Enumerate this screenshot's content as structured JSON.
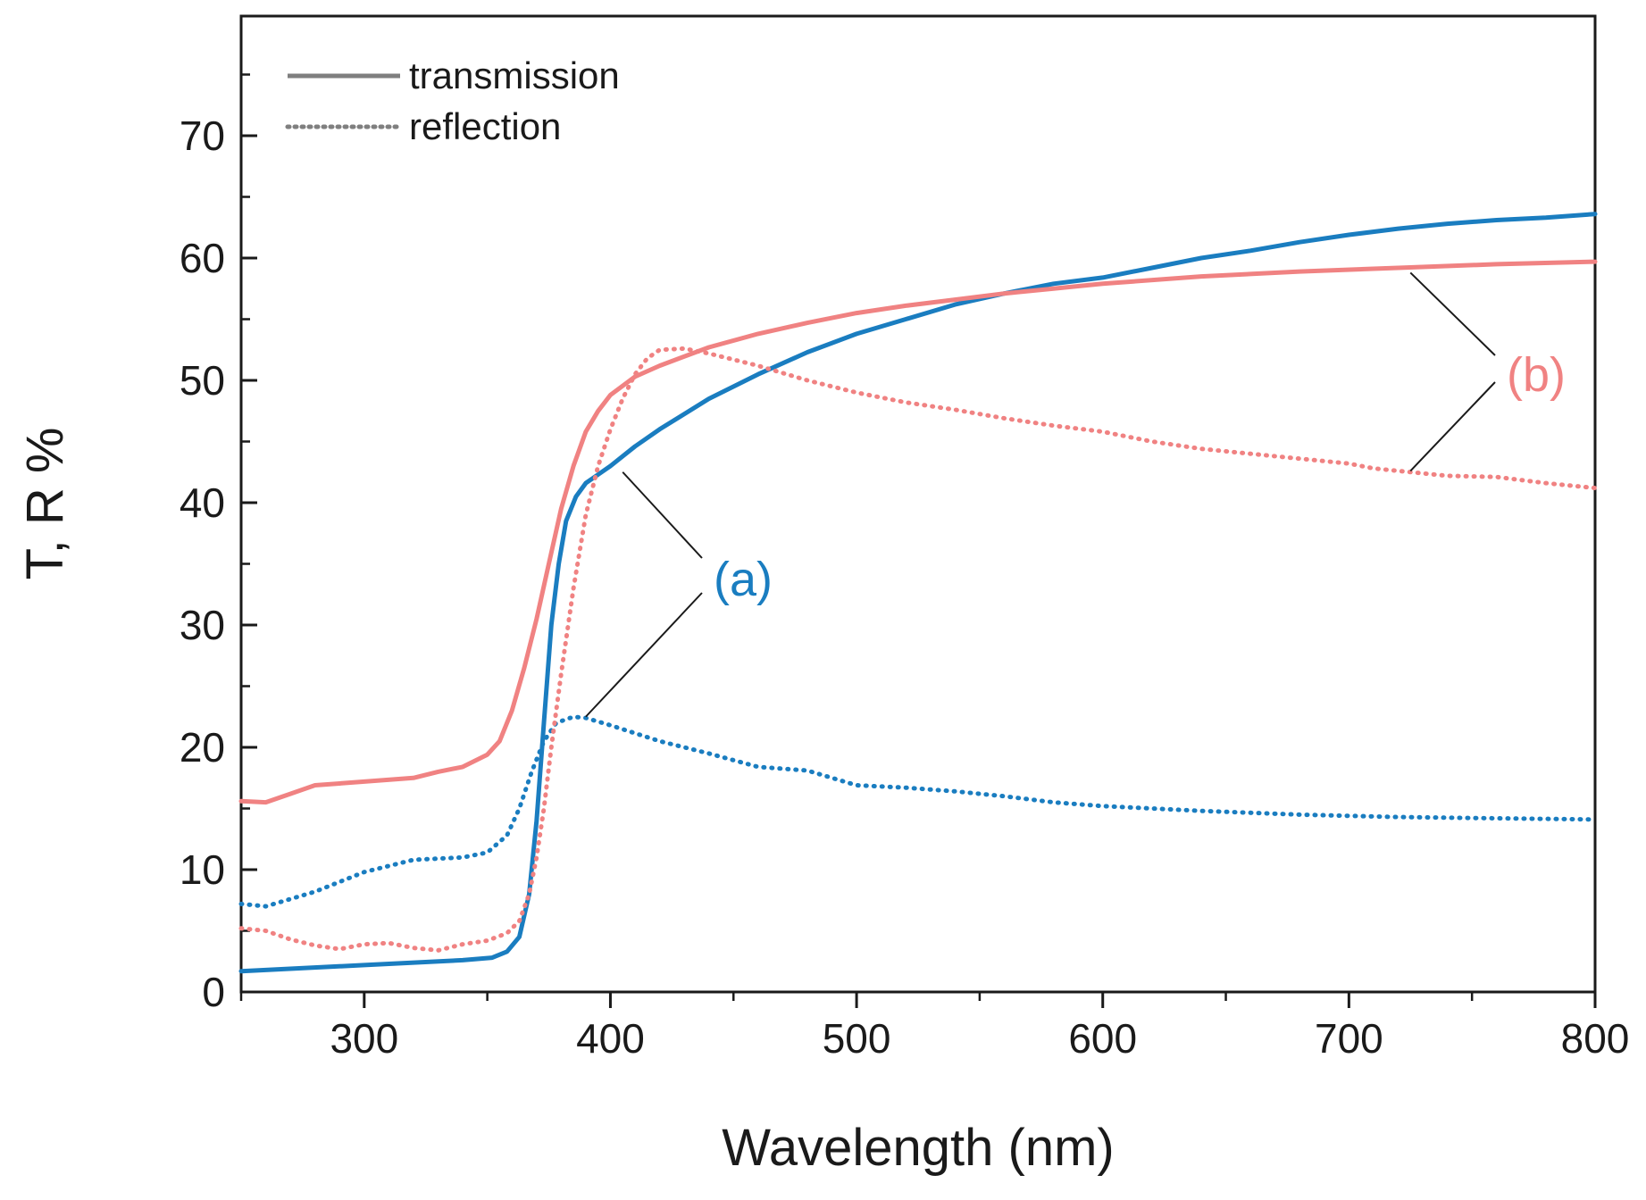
{
  "chart_data": {
    "type": "line",
    "xlabel": "Wavelength (nm)",
    "ylabel": "T, R %",
    "xlim": [
      250,
      800
    ],
    "ylim": [
      0,
      70
    ],
    "x_ticks": [
      300,
      400,
      500,
      600,
      700,
      800
    ],
    "y_ticks": [
      0,
      10,
      20,
      30,
      40,
      50,
      60,
      70
    ],
    "grid": false,
    "legend": {
      "placement": "top-left",
      "entries": [
        {
          "label": "transmission",
          "style": "solid",
          "color": "#7f7f7f"
        },
        {
          "label": "reflection",
          "style": "dotted",
          "color": "#7f7f7f"
        }
      ]
    },
    "series": [
      {
        "sample": "(a)",
        "quantity": "transmission",
        "style": "solid",
        "color": "#1a7dc0",
        "x": [
          250,
          300,
          340,
          352,
          358,
          363,
          367,
          370,
          373,
          376,
          379,
          382,
          386,
          390,
          395,
          400,
          410,
          420,
          440,
          460,
          480,
          500,
          520,
          540,
          560,
          580,
          600,
          620,
          640,
          660,
          680,
          700,
          720,
          740,
          760,
          780,
          800
        ],
        "y": [
          1.7,
          2.2,
          2.6,
          2.8,
          3.3,
          4.5,
          8,
          14,
          22,
          30,
          35,
          38.5,
          40.5,
          41.6,
          42.3,
          43,
          44.6,
          46,
          48.5,
          50.5,
          52.3,
          53.8,
          55,
          56.2,
          57.1,
          57.9,
          58.4,
          59.2,
          60,
          60.6,
          61.3,
          61.9,
          62.4,
          62.8,
          63.1,
          63.3,
          63.6
        ]
      },
      {
        "sample": "(a)",
        "quantity": "reflection",
        "style": "dotted",
        "color": "#1a7dc0",
        "x": [
          250,
          260,
          280,
          300,
          320,
          340,
          350,
          358,
          363,
          368,
          373,
          378,
          385,
          390,
          400,
          420,
          440,
          460,
          480,
          500,
          520,
          540,
          560,
          580,
          600,
          640,
          680,
          720,
          760,
          800
        ],
        "y": [
          7.2,
          7.0,
          8.2,
          9.8,
          10.8,
          11.0,
          11.4,
          12.8,
          15,
          18,
          20.5,
          22,
          22.5,
          22.4,
          21.8,
          20.5,
          19.5,
          18.4,
          18.1,
          16.9,
          16.7,
          16.4,
          16,
          15.5,
          15.2,
          14.8,
          14.5,
          14.3,
          14.2,
          14.1
        ]
      },
      {
        "sample": "(b)",
        "quantity": "transmission",
        "style": "solid",
        "color": "#f08282",
        "x": [
          250,
          260,
          270,
          280,
          300,
          320,
          330,
          340,
          350,
          355,
          360,
          365,
          370,
          375,
          380,
          385,
          390,
          395,
          400,
          410,
          420,
          440,
          460,
          480,
          500,
          520,
          540,
          560,
          580,
          600,
          640,
          680,
          720,
          760,
          800
        ],
        "y": [
          15.6,
          15.5,
          16.2,
          16.9,
          17.2,
          17.5,
          18.0,
          18.4,
          19.4,
          20.5,
          23,
          26.5,
          30.5,
          35,
          39.5,
          43,
          45.8,
          47.5,
          48.8,
          50.3,
          51.2,
          52.7,
          53.8,
          54.7,
          55.5,
          56.1,
          56.6,
          57.1,
          57.5,
          57.9,
          58.5,
          58.9,
          59.2,
          59.5,
          59.7
        ]
      },
      {
        "sample": "(b)",
        "quantity": "reflection",
        "style": "dotted",
        "color": "#f08282",
        "x": [
          250,
          260,
          270,
          280,
          290,
          300,
          310,
          320,
          330,
          340,
          350,
          358,
          363,
          367,
          370,
          373,
          376,
          380,
          385,
          390,
          395,
          400,
          405,
          410,
          415,
          420,
          430,
          440,
          460,
          480,
          500,
          520,
          540,
          560,
          580,
          600,
          620,
          640,
          660,
          680,
          700,
          710,
          720,
          740,
          760,
          780,
          800
        ],
        "y": [
          5.2,
          5.0,
          4.3,
          3.8,
          3.5,
          3.9,
          4.0,
          3.6,
          3.4,
          3.9,
          4.2,
          4.8,
          5.8,
          8,
          11,
          15,
          20,
          26,
          33,
          39,
          43,
          46,
          48.5,
          50.5,
          51.8,
          52.5,
          52.6,
          52.2,
          51.2,
          50.0,
          49.0,
          48.2,
          47.6,
          46.9,
          46.3,
          45.8,
          45.0,
          44.4,
          44.0,
          43.6,
          43.2,
          42.8,
          42.6,
          42.2,
          42.1,
          41.6,
          41.2
        ]
      }
    ],
    "annotations": [
      {
        "text": "(a)",
        "color": "#1a7dc0",
        "points_to": [
          {
            "x": 405,
            "y": 42.5
          },
          {
            "x": 390,
            "y": 22.5
          }
        ]
      },
      {
        "text": "(b)",
        "color": "#f08282",
        "points_to": [
          {
            "x": 725,
            "y": 58.8
          },
          {
            "x": 725,
            "y": 42.6
          }
        ]
      }
    ]
  }
}
